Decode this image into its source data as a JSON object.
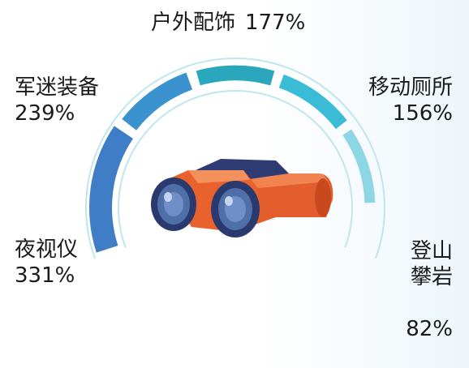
{
  "chart_data": {
    "type": "radial-bar",
    "segments": [
      {
        "name": "夜视仪",
        "value": 331,
        "value_label": "331%",
        "color": "#3f7ec6"
      },
      {
        "name": "军迷装备",
        "value": 239,
        "value_label": "239%",
        "color": "#3a92cf"
      },
      {
        "name": "户外配饰",
        "value": 177,
        "value_label": "177%",
        "color": "#2aa7bc"
      },
      {
        "name": "移动厕所",
        "value": 156,
        "value_label": "156%",
        "color": "#3bbcd6"
      },
      {
        "name": "登山\n攀岩",
        "value": 82,
        "value_label": "82%",
        "color": "#8fd6e4"
      }
    ],
    "max_value": 331,
    "track_color": "#bfe6ee",
    "icon": "binoculars-icon"
  }
}
